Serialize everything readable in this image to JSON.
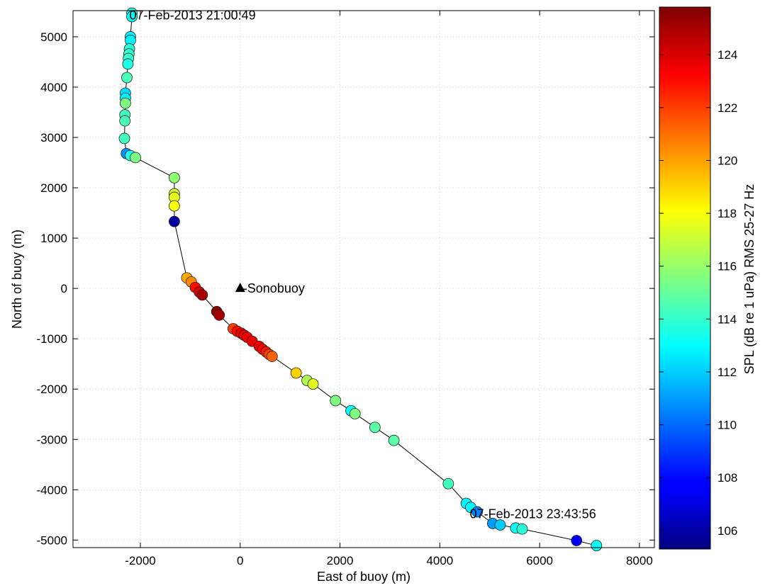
{
  "chart_data": {
    "type": "scatter",
    "xlabel": "East of buoy (m)",
    "ylabel": "North of buoy (m)",
    "xlim": [
      -3350,
      8300
    ],
    "ylim": [
      -5150,
      5520
    ],
    "xticks": [
      -2000,
      0,
      2000,
      4000,
      6000,
      8000
    ],
    "yticks": [
      5000,
      4000,
      3000,
      2000,
      1000,
      0,
      -1000,
      -2000,
      -3000,
      -4000,
      -5000
    ],
    "xtick_labels": [
      "-2000",
      "0",
      "2000",
      "4000",
      "6000",
      "8000"
    ],
    "ytick_labels": [
      "5000",
      "4000",
      "3000",
      "2000",
      "1000",
      "0",
      "-1000",
      "-2000",
      "-3000",
      "-4000",
      "-5000"
    ],
    "grid": true,
    "track_line": true,
    "colorbar": {
      "label": "SPL (dB re 1 uPa) RMS 25-27 Hz",
      "range": [
        105.3,
        125.8
      ],
      "ticks": [
        106,
        108,
        110,
        112,
        114,
        116,
        118,
        120,
        122,
        124
      ],
      "tick_labels": [
        "106",
        "108",
        "110",
        "112",
        "114",
        "116",
        "118",
        "120",
        "122",
        "124"
      ],
      "colormap": "jet"
    },
    "annotations": [
      {
        "text": "07-Feb-2013 21:00:49",
        "x": -2220,
        "y": 5430
      },
      {
        "text": "07-Feb-2013 23:43:56",
        "x": 4600,
        "y": -4480
      }
    ],
    "marker": {
      "text": "Sonobuoy",
      "x": 0,
      "y": 0,
      "symbol": "triangle"
    },
    "points": [
      {
        "x": -2170,
        "y": 5470,
        "c": 113.5
      },
      {
        "x": -2170,
        "y": 5400,
        "c": 113.0
      },
      {
        "x": -2200,
        "y": 5000,
        "c": 112.8
      },
      {
        "x": -2200,
        "y": 4930,
        "c": 112.8
      },
      {
        "x": -2220,
        "y": 4760,
        "c": 113.8
      },
      {
        "x": -2230,
        "y": 4660,
        "c": 114.0
      },
      {
        "x": -2240,
        "y": 4570,
        "c": 114.0
      },
      {
        "x": -2250,
        "y": 4460,
        "c": 113.5
      },
      {
        "x": -2270,
        "y": 4190,
        "c": 114.5
      },
      {
        "x": -2300,
        "y": 3880,
        "c": 112.3
      },
      {
        "x": -2300,
        "y": 3780,
        "c": 112.8
      },
      {
        "x": -2300,
        "y": 3680,
        "c": 115.5
      },
      {
        "x": -2310,
        "y": 3450,
        "c": 114.3
      },
      {
        "x": -2310,
        "y": 3330,
        "c": 114.5
      },
      {
        "x": -2320,
        "y": 2980,
        "c": 114.3
      },
      {
        "x": -2280,
        "y": 2680,
        "c": 110.8
      },
      {
        "x": -2200,
        "y": 2640,
        "c": 113.5
      },
      {
        "x": -2100,
        "y": 2600,
        "c": 115.5
      },
      {
        "x": -1320,
        "y": 2200,
        "c": 115.8
      },
      {
        "x": -1320,
        "y": 1880,
        "c": 117.3
      },
      {
        "x": -1320,
        "y": 1810,
        "c": 117.5
      },
      {
        "x": -1320,
        "y": 1640,
        "c": 118.0
      },
      {
        "x": -1320,
        "y": 1330,
        "c": 106.0
      },
      {
        "x": -1070,
        "y": 210,
        "c": 119.8
      },
      {
        "x": -980,
        "y": 130,
        "c": 120.5
      },
      {
        "x": -900,
        "y": 20,
        "c": 123.0
      },
      {
        "x": -820,
        "y": -70,
        "c": 124.0
      },
      {
        "x": -760,
        "y": -130,
        "c": 125.0
      },
      {
        "x": -470,
        "y": -460,
        "c": 125.5
      },
      {
        "x": -420,
        "y": -530,
        "c": 125.0
      },
      {
        "x": -140,
        "y": -800,
        "c": 122.0
      },
      {
        "x": -60,
        "y": -850,
        "c": 123.0
      },
      {
        "x": 20,
        "y": -890,
        "c": 123.5
      },
      {
        "x": 80,
        "y": -930,
        "c": 123.5
      },
      {
        "x": 140,
        "y": -970,
        "c": 123.5
      },
      {
        "x": 240,
        "y": -1050,
        "c": 123.5
      },
      {
        "x": 380,
        "y": -1150,
        "c": 123.5
      },
      {
        "x": 450,
        "y": -1210,
        "c": 123.2
      },
      {
        "x": 520,
        "y": -1260,
        "c": 122.8
      },
      {
        "x": 580,
        "y": -1310,
        "c": 122.0
      },
      {
        "x": 640,
        "y": -1350,
        "c": 121.3
      },
      {
        "x": 1120,
        "y": -1680,
        "c": 119.0
      },
      {
        "x": 1340,
        "y": -1830,
        "c": 116.5
      },
      {
        "x": 1460,
        "y": -1900,
        "c": 117.5
      },
      {
        "x": 1910,
        "y": -2230,
        "c": 115.5
      },
      {
        "x": 2220,
        "y": -2430,
        "c": 113.0
      },
      {
        "x": 2300,
        "y": -2490,
        "c": 115.5
      },
      {
        "x": 2700,
        "y": -2760,
        "c": 114.8
      },
      {
        "x": 3080,
        "y": -3020,
        "c": 114.8
      },
      {
        "x": 4170,
        "y": -3880,
        "c": 114.3
      },
      {
        "x": 4530,
        "y": -4270,
        "c": 112.8
      },
      {
        "x": 4620,
        "y": -4350,
        "c": 113.0
      },
      {
        "x": 4750,
        "y": -4440,
        "c": 110.5
      },
      {
        "x": 5060,
        "y": -4670,
        "c": 111.0
      },
      {
        "x": 5210,
        "y": -4700,
        "c": 112.0
      },
      {
        "x": 5520,
        "y": -4760,
        "c": 113.2
      },
      {
        "x": 5650,
        "y": -4780,
        "c": 113.8
      },
      {
        "x": 6740,
        "y": -5010,
        "c": 107.5
      },
      {
        "x": 7140,
        "y": -5110,
        "c": 113.2
      }
    ]
  }
}
